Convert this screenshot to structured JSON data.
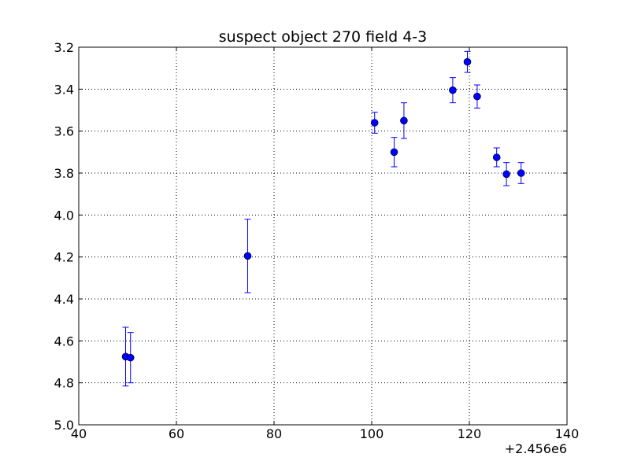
{
  "chart_data": {
    "type": "scatter",
    "title": "suspect object 270 field 4-3",
    "xlabel": "",
    "ylabel": "",
    "x_offset_label": "+2.456e6",
    "xlim": [
      40,
      140
    ],
    "ylim": [
      3.2,
      5.0
    ],
    "y_inverted": true,
    "grid": true,
    "x_ticks": [
      "40",
      "60",
      "80",
      "100",
      "120",
      "140"
    ],
    "y_ticks": [
      "3.2",
      "3.4",
      "3.6",
      "3.8",
      "4.0",
      "4.2",
      "4.4",
      "4.6",
      "4.8",
      "5.0"
    ],
    "marker_color": "#0000ff",
    "errorbar_color": "#0000ff",
    "points": [
      {
        "x": 49.6,
        "y": 4.675,
        "yerr": 0.14
      },
      {
        "x": 50.6,
        "y": 4.68,
        "yerr": 0.12
      },
      {
        "x": 74.6,
        "y": 4.195,
        "yerr": 0.175
      },
      {
        "x": 100.6,
        "y": 3.56,
        "yerr": 0.05
      },
      {
        "x": 104.6,
        "y": 3.7,
        "yerr": 0.07
      },
      {
        "x": 106.6,
        "y": 3.55,
        "yerr": 0.085
      },
      {
        "x": 116.6,
        "y": 3.405,
        "yerr": 0.06
      },
      {
        "x": 119.6,
        "y": 3.27,
        "yerr": 0.05
      },
      {
        "x": 121.6,
        "y": 3.435,
        "yerr": 0.055
      },
      {
        "x": 125.6,
        "y": 3.725,
        "yerr": 0.045
      },
      {
        "x": 127.6,
        "y": 3.805,
        "yerr": 0.055
      },
      {
        "x": 130.6,
        "y": 3.8,
        "yerr": 0.05
      }
    ]
  }
}
